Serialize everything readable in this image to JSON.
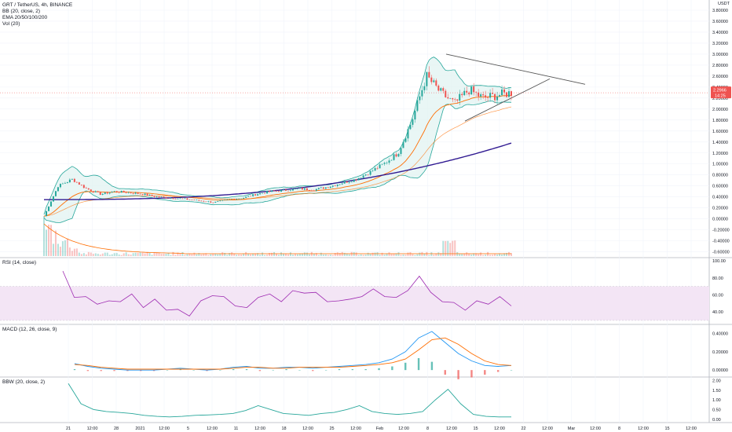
{
  "legend": {
    "symbol": "GRT / TetherUS, 4h, BINANCE",
    "bb": "BB (20, close, 2)",
    "ema": "EMA 20/50/100/200",
    "vol": "Vol (20)"
  },
  "price_axis": {
    "currency": "USDT",
    "badge_price": "2.2966",
    "badge_time": "14:25"
  },
  "pane_labels": {
    "rsi": "RSI (14, close)",
    "macd": "MACD (12, 26, close, 9)",
    "bbw": "BBW (20, close, 2)"
  },
  "colors": {
    "bb_line": "#26a69a",
    "bb_fill": "#e0f2f1",
    "ema_fast": "#ff6d00",
    "ema_slow": "#311b92",
    "up": "#26a69a",
    "down": "#ef5350",
    "rsi_line": "#9c27b0",
    "rsi_band": "#f3e5f5",
    "macd_line": "#2196f3",
    "signal_line": "#ff6d00",
    "badge": "#ef5350",
    "trendline": "#555555"
  },
  "chart_data": [
    {
      "type": "line",
      "pane": "price",
      "y_ticks": [
        "3.80000",
        "3.60000",
        "3.40000",
        "3.20000",
        "3.00000",
        "2.80000",
        "2.60000",
        "2.40000",
        "2.20000",
        "2.00000",
        "1.80000",
        "1.60000",
        "1.40000",
        "1.20000",
        "1.00000",
        "0.80000",
        "0.60000",
        "0.40000",
        "0.20000",
        "0.00000",
        "-0.20000",
        "-0.40000",
        "-0.60000"
      ],
      "ylim": [
        -0.62,
        3.9
      ],
      "x_ticks": [
        "21",
        "12:00",
        "28",
        "2021",
        "12:00",
        "5",
        "12:00",
        "11",
        "12:00",
        "18",
        "12:00",
        "25",
        "12:00",
        "Feb",
        "12:00",
        "8",
        "12:00",
        "15",
        "12:00",
        "22",
        "12:00",
        "Mar",
        "12:00",
        "8",
        "12:00",
        "15",
        "12:00"
      ],
      "close_approx": {
        "x_range": [
          "Dec 17",
          "Feb 22"
        ],
        "points": [
          [
            0,
            0.05
          ],
          [
            1,
            0.6
          ],
          [
            2,
            0.72
          ],
          [
            3,
            0.55
          ],
          [
            4,
            0.45
          ],
          [
            5,
            0.5
          ],
          [
            6,
            0.48
          ],
          [
            7,
            0.45
          ],
          [
            8,
            0.4
          ],
          [
            9,
            0.38
          ],
          [
            10,
            0.36
          ],
          [
            11,
            0.33
          ],
          [
            12,
            0.3
          ],
          [
            13,
            0.35
          ],
          [
            14,
            0.38
          ],
          [
            15,
            0.45
          ],
          [
            16,
            0.5
          ],
          [
            17,
            0.52
          ],
          [
            18,
            0.55
          ],
          [
            19,
            0.53
          ],
          [
            20,
            0.58
          ],
          [
            21,
            0.65
          ],
          [
            22,
            0.72
          ],
          [
            23,
            0.85
          ],
          [
            24,
            1.0
          ],
          [
            25,
            1.2
          ],
          [
            26,
            1.8
          ],
          [
            27,
            2.6
          ],
          [
            28,
            2.3
          ],
          [
            29,
            2.1
          ],
          [
            30,
            2.35
          ],
          [
            31,
            2.2
          ],
          [
            32,
            2.25
          ],
          [
            33,
            2.3
          ]
        ]
      },
      "ema200_end": 1.38,
      "last_price": 2.2966
    },
    {
      "type": "line",
      "pane": "rsi",
      "y_ticks": [
        "100.00",
        "80.00",
        "60.00",
        "40.00"
      ],
      "ylim": [
        28,
        102
      ],
      "band": [
        30,
        70
      ],
      "values": [
        85,
        60,
        55,
        52,
        50,
        55,
        58,
        48,
        52,
        45,
        40,
        38,
        50,
        62,
        55,
        50,
        42,
        60,
        58,
        55,
        62,
        65,
        60,
        55,
        50,
        58,
        55,
        70,
        55,
        60,
        62,
        85,
        60,
        55,
        48,
        45,
        50,
        52,
        55,
        50
      ]
    },
    {
      "type": "line",
      "pane": "macd",
      "y_ticks": [
        "0.40000",
        "0.20000",
        "0.00000"
      ],
      "ylim": [
        -0.05,
        0.48
      ],
      "macd": [
        0.07,
        0.04,
        0.02,
        0.01,
        0.0,
        0.0,
        0.0,
        0.01,
        0.02,
        0.01,
        0.0,
        0.01,
        0.03,
        0.04,
        0.02,
        0.02,
        0.03,
        0.03,
        0.02,
        0.03,
        0.04,
        0.05,
        0.06,
        0.08,
        0.12,
        0.2,
        0.35,
        0.42,
        0.3,
        0.18,
        0.1,
        0.05,
        0.04,
        0.05
      ],
      "signal": [
        0.06,
        0.05,
        0.03,
        0.02,
        0.01,
        0.01,
        0.01,
        0.01,
        0.01,
        0.01,
        0.01,
        0.01,
        0.02,
        0.03,
        0.03,
        0.02,
        0.02,
        0.03,
        0.03,
        0.03,
        0.03,
        0.04,
        0.05,
        0.06,
        0.08,
        0.12,
        0.22,
        0.33,
        0.35,
        0.28,
        0.18,
        0.1,
        0.06,
        0.05
      ]
    },
    {
      "type": "line",
      "pane": "bbw",
      "y_ticks": [
        "2.00",
        "1.50",
        "1.00",
        "0.50",
        "0.00"
      ],
      "ylim": [
        -0.05,
        2.1
      ],
      "values": [
        1.85,
        0.8,
        0.5,
        0.4,
        0.35,
        0.3,
        0.2,
        0.15,
        0.12,
        0.15,
        0.2,
        0.22,
        0.25,
        0.3,
        0.45,
        0.7,
        0.5,
        0.3,
        0.25,
        0.2,
        0.3,
        0.35,
        0.5,
        0.7,
        0.4,
        0.3,
        0.25,
        0.3,
        0.4,
        1.0,
        1.55,
        0.8,
        0.25,
        0.15,
        0.12,
        0.12
      ]
    }
  ]
}
